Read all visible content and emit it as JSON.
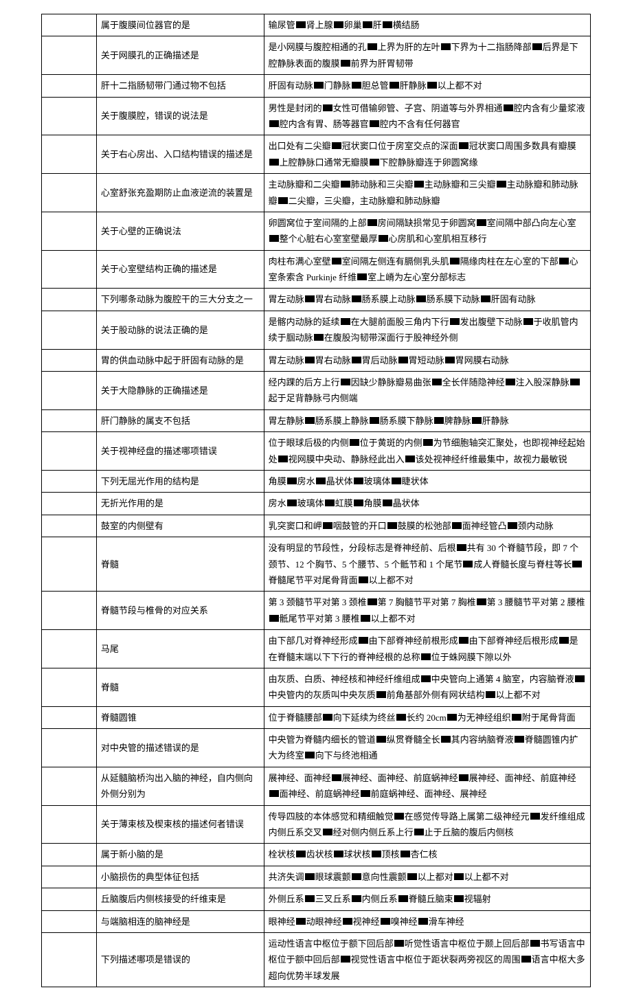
{
  "separator": "■",
  "rows": [
    {
      "q": "属于腹膜间位器官的是",
      "a": [
        "输尿管",
        "肾上腺",
        "卵巢",
        "肝",
        "横结肠"
      ]
    },
    {
      "q": "关于网膜孔的正确描述是",
      "a": [
        "是小网膜与腹腔相通的孔",
        "上界为肝的左叶",
        "下界为十二指肠降部",
        "后界是下腔静脉表面的腹膜",
        "前界为肝胃韧带"
      ]
    },
    {
      "q": "肝十二指肠韧带门通过物不包括",
      "a": [
        "肝固有动脉",
        "门静脉",
        "胆总管",
        "肝静脉",
        "以上都不对"
      ]
    },
    {
      "q": "关于腹膜腔，错误的说法是",
      "a": [
        "男性是封闭的",
        "女性可借输卵管、子宫、阴道等与外界相通",
        "腔内含有少量浆液",
        "腔内含有胃、肠等器官",
        "腔内不含有任何器官"
      ]
    },
    {
      "q": "关于右心房出、入口结构错误的描述是",
      "a": [
        "出口处有二尖瓣",
        "冠状窦口位于房室交点的深面",
        "冠状窦口周围多数具有瓣膜",
        "上腔静脉口通常无瓣膜",
        "下腔静脉瓣连于卵圆窝缘"
      ]
    },
    {
      "q": "心室舒张充盈期防止血液逆流的装置是",
      "a": [
        "主动脉瓣和二尖瓣",
        "肺动脉和三尖瓣",
        "主动脉瓣和三尖瓣",
        "主动脉瓣和肺动脉瓣",
        "二尖瓣，三尖瓣，主动脉瓣和肺动脉瓣"
      ]
    },
    {
      "q": "关于心壁的正确说法",
      "a": [
        "卵圆窝位于室间隔的上部",
        "房间隔缺损常见于卵圆窝",
        "室间隔中部凸向左心室",
        "整个心脏右心室室壁最厚",
        "心房肌和心室肌相互移行"
      ]
    },
    {
      "q": "关于心室壁结构正确的描述是",
      "a": [
        "肉柱布满心室壁",
        "室间隔左侧连有膈侧乳头肌",
        "隔缘肉柱在左心室的下部",
        "心室条索含 Purkinje 纤维",
        "室上嵴为左心室分部标志"
      ]
    },
    {
      "q": "下列哪条动脉为腹腔干的三大分支之一",
      "a": [
        "胃左动脉",
        "胃右动脉",
        "肠系膜上动脉",
        "肠系膜下动脉",
        "肝固有动脉"
      ]
    },
    {
      "q": "关于股动脉的说法正确的是",
      "a": [
        "是髂内动脉的延续",
        "在大腿前面股三角内下行",
        "发出腹壁下动脉",
        "于收肌管内续于腘动脉",
        "在腹股沟韧带深面行于股神经外侧"
      ]
    },
    {
      "q": "胃的供血动脉中起于肝固有动脉的是",
      "a": [
        "胃左动脉",
        "胃右动脉",
        "胃后动脉",
        "胃短动脉",
        "胃网膜右动脉"
      ]
    },
    {
      "q": "关于大隐静脉的正确描述是",
      "a": [
        "经内踝的后方上行",
        "因缺少静脉瓣易曲张",
        "全长伴随隐神经",
        "注入股深静脉",
        "起于足背静脉弓内侧端"
      ]
    },
    {
      "q": "肝门静脉的属支不包括",
      "a": [
        "胃左静脉",
        "肠系膜上静脉",
        "肠系膜下静脉",
        "脾静脉",
        "肝静脉"
      ]
    },
    {
      "q": "关于视神经盘的描述哪项错误",
      "a": [
        "位于眼球后极的内侧",
        "位于黄斑的内侧",
        "为节细胞轴突汇聚处，也即视神经起始处",
        "视网膜中央动、静脉经此出入",
        "该处视神经纤维最集中，故视力最敏锐"
      ]
    },
    {
      "q": "下列无屈光作用的结构是",
      "a": [
        "角膜",
        "房水",
        "晶状体",
        "玻璃体",
        "睫状体"
      ]
    },
    {
      "q": "无折光作用的是",
      "a": [
        "房水",
        "玻璃体",
        "虹膜",
        "角膜",
        "晶状体"
      ]
    },
    {
      "q": "鼓室的内侧壁有",
      "a": [
        "乳突窦口和岬",
        "咽鼓管的开口",
        "鼓膜的松弛部",
        "面神经管凸",
        "颈内动脉"
      ]
    },
    {
      "q": "脊髓",
      "a": [
        "没有明显的节段性，分段标志是脊神经前、后根",
        "共有 30 个脊髓节段，即 7 个颈节、12 个胸节、5 个腰节、5 个骶节和 1 个尾节",
        "成人脊髓长度与脊柱等长",
        "脊髓尾节平对尾骨背面",
        "以上都不对"
      ]
    },
    {
      "q": "脊髓节段与椎骨的对应关系",
      "a": [
        "第 3 颈髓节平对第 3 颈椎",
        "第 7 胸髓节平对第 7 胸椎",
        "第 3 腰髓节平对第 2 腰椎",
        "骶尾节平对第 3 腰椎",
        "以上都不对"
      ]
    },
    {
      "q": "马尾",
      "a": [
        "由下部几对脊神经形成",
        "由下部脊神经前根形成",
        "由下部脊神经后根形成",
        "是在脊髓末端以下下行的脊神经根的总称",
        "位于蛛网膜下隙以外"
      ]
    },
    {
      "q": "脊髓",
      "a": [
        "由灰质、白质、神经核和神经纤维组成",
        "中央管向上通第 4 脑室，内容脑脊液",
        "中央管内的灰质叫中央灰质",
        "前角基部外侧有网状结构",
        "以上都不对"
      ]
    },
    {
      "q": "脊髓圆锥",
      "a": [
        "位于脊髓腰部",
        "向下延续为终丝",
        "长约 20cm",
        "为无神经组织",
        "附于尾骨背面"
      ]
    },
    {
      "q": "对中央管的描述错误的是",
      "a": [
        "中央管为脊髓内细长的管道",
        "纵贯脊髓全长",
        "其内容纳脑脊液",
        "脊髓圆锥内扩大为终室",
        "向下与终池相通"
      ]
    },
    {
      "q": "从延髓脑桥沟出入脑的神经，自内侧向外侧分别为",
      "a": [
        "展神经、面神经",
        "展神经、面神经、前庭蜗神经",
        "展神经、面神经、前庭神经",
        "面神经、前庭蜗神经",
        "前庭蜗神经、面神经、展神经"
      ]
    },
    {
      "q": "关于薄束核及楔束核的描述何者错误",
      "a": [
        "传导四肢的本体感觉和精细触觉",
        "在感觉传导路上属第二级神经元",
        "发纤维组成内侧丘系交叉",
        "经对侧内侧丘系上行",
        "止于丘脑的腹后内侧核"
      ]
    },
    {
      "q": "属于新小脑的是",
      "a": [
        "栓状核",
        "齿状核",
        "球状核",
        "顶核",
        "杏仁核"
      ]
    },
    {
      "q": "小脑损伤的典型体征包括",
      "a": [
        "共济失调",
        "眼球震颤",
        "意向性震颤",
        "以上都对",
        "以上都不对"
      ]
    },
    {
      "q": "丘脑腹后内侧核接受的纤维束是",
      "a": [
        "外侧丘系",
        "三叉丘系",
        "内侧丘系",
        "脊髓丘脑束",
        "视辐射"
      ]
    },
    {
      "q": "与端脑相连的脑神经是",
      "a": [
        "眼神经",
        "动眼神经",
        "视神经",
        "嗅神经",
        "滑车神经"
      ]
    },
    {
      "q": "下列描述哪项是错误的",
      "a": [
        "运动性语言中枢位于额下回后部",
        "听觉性语言中枢位于颞上回后部",
        "书写语言中枢位于额中回后部",
        "视觉性语言中枢位于距状裂两旁视区的周围",
        "语言中枢大多超向优势半球发展"
      ]
    }
  ]
}
